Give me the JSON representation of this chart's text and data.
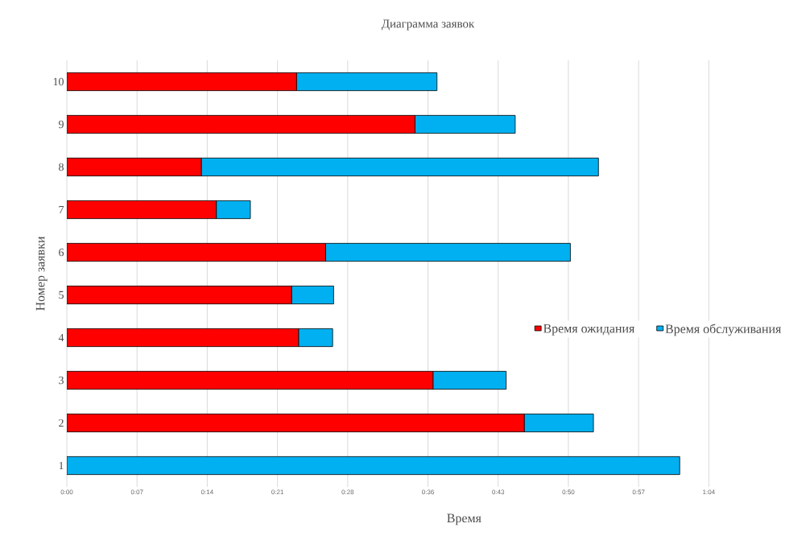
{
  "chart_data": {
    "type": "bar",
    "orientation": "horizontal",
    "stacked": true,
    "title": "Диаграмма заявок",
    "xlabel": "Время",
    "ylabel": "Номер заявки",
    "categories": [
      "10",
      "9",
      "8",
      "7",
      "6",
      "5",
      "4",
      "3",
      "2",
      "1"
    ],
    "series": [
      {
        "name": "Время ожидания",
        "color": "#ff0000",
        "values": [
          22.9,
          34.7,
          13.4,
          14.9,
          25.8,
          22.4,
          23.1,
          36.5,
          45.6,
          0
        ]
      },
      {
        "name": "Время обслуживания",
        "color": "#00b0f0",
        "values": [
          14.0,
          10.0,
          39.6,
          3.4,
          24.4,
          4.2,
          3.4,
          7.3,
          6.9,
          61.1
        ]
      }
    ],
    "xlim": [
      0,
      72
    ],
    "xticks": [
      {
        "value": 0,
        "label": "0:00"
      },
      {
        "value": 7,
        "label": "0:07"
      },
      {
        "value": 14,
        "label": "0:14"
      },
      {
        "value": 21,
        "label": "0:21"
      },
      {
        "value": 28,
        "label": "0:28"
      },
      {
        "value": 36,
        "label": "0:36"
      },
      {
        "value": 43,
        "label": "0:43"
      },
      {
        "value": 50,
        "label": "0:50"
      },
      {
        "value": 57,
        "label": "0:57"
      },
      {
        "value": 64,
        "label": "1:04"
      }
    ],
    "grid": "x",
    "legend": "right"
  }
}
